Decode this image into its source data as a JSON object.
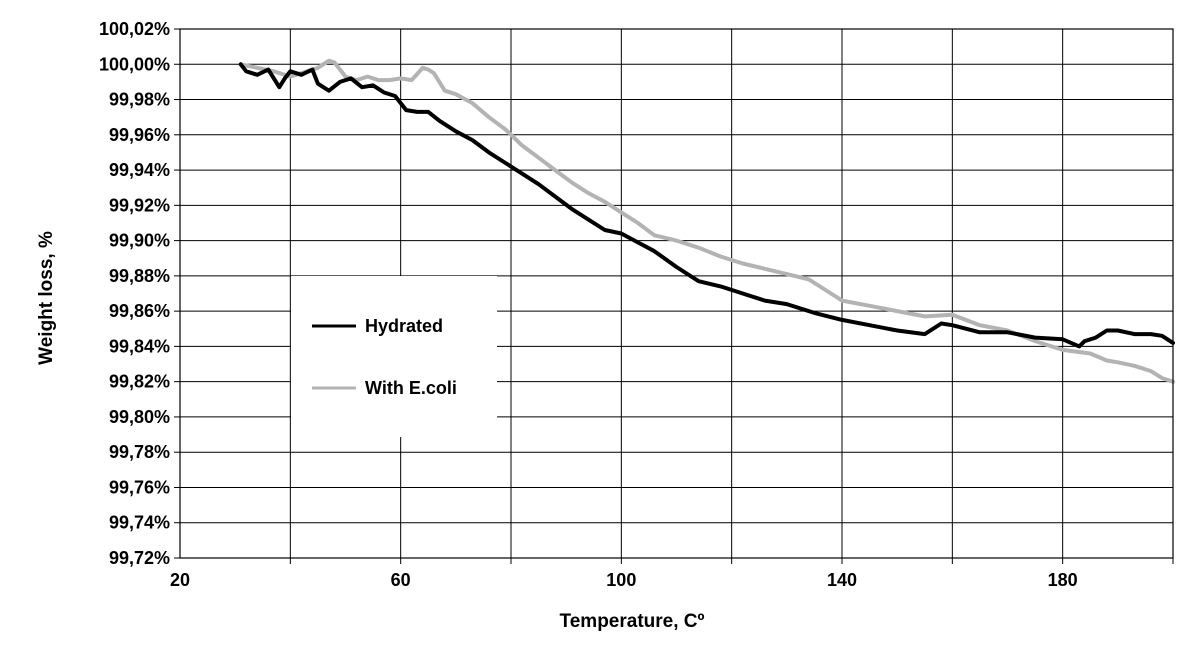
{
  "chart_data": {
    "type": "line",
    "xlabel": "Temperature, Cº",
    "ylabel": "Weight loss, %",
    "xlim": [
      20,
      200
    ],
    "ylim": [
      99.72,
      100.02
    ],
    "x_ticks": [
      20,
      60,
      100,
      140,
      180
    ],
    "x_tick_labels": [
      "20",
      "60",
      "100",
      "140",
      "180"
    ],
    "y_ticks": [
      99.72,
      99.74,
      99.76,
      99.78,
      99.8,
      99.82,
      99.84,
      99.86,
      99.88,
      99.9,
      99.92,
      99.94,
      99.96,
      99.98,
      100.0,
      100.02
    ],
    "y_tick_labels": [
      "99,72%",
      "99,74%",
      "99,76%",
      "99,78%",
      "99,80%",
      "99,82%",
      "99,84%",
      "99,86%",
      "99,88%",
      "99,90%",
      "99,92%",
      "99,94%",
      "99,96%",
      "99,98%",
      "100,00%",
      "100,02%"
    ],
    "grid": true,
    "legend_position": "middle-left",
    "series": [
      {
        "name": "Hydrated",
        "color": "#000000",
        "x": [
          31,
          32,
          34,
          36,
          38,
          39,
          40,
          42,
          44,
          45,
          47,
          49,
          51,
          53,
          55,
          57,
          59,
          61,
          63,
          65,
          67,
          70,
          73,
          76,
          79,
          82,
          85,
          88,
          91,
          94,
          97,
          100,
          103,
          106,
          110,
          114,
          118,
          122,
          126,
          130,
          135,
          140,
          145,
          150,
          155,
          158,
          160,
          165,
          170,
          175,
          180,
          183,
          184,
          186,
          188,
          190,
          193,
          196,
          198,
          200
        ],
        "y": [
          100.0,
          99.996,
          99.994,
          99.997,
          99.987,
          99.992,
          99.996,
          99.994,
          99.997,
          99.989,
          99.985,
          99.99,
          99.992,
          99.987,
          99.988,
          99.984,
          99.982,
          99.974,
          99.973,
          99.973,
          99.968,
          99.962,
          99.957,
          99.95,
          99.944,
          99.938,
          99.932,
          99.925,
          99.918,
          99.912,
          99.906,
          99.904,
          99.899,
          99.894,
          99.885,
          99.877,
          99.874,
          99.87,
          99.866,
          99.864,
          99.859,
          99.855,
          99.852,
          99.849,
          99.847,
          99.853,
          99.852,
          99.848,
          99.848,
          99.845,
          99.844,
          99.84,
          99.843,
          99.845,
          99.849,
          99.849,
          99.847,
          99.847,
          99.846,
          99.842
        ]
      },
      {
        "name": "With E.coli",
        "color": "#b3b3b3",
        "x": [
          31,
          34,
          37,
          40,
          43,
          45,
          47,
          48,
          50,
          52,
          54,
          56,
          58,
          60,
          62,
          64,
          65,
          66,
          68,
          70,
          73,
          76,
          79,
          82,
          85,
          88,
          91,
          94,
          97,
          100,
          103,
          106,
          110,
          114,
          118,
          122,
          126,
          130,
          134,
          137,
          140,
          145,
          150,
          155,
          160,
          165,
          170,
          175,
          180,
          185,
          188,
          190,
          193,
          196,
          198,
          200
        ],
        "y": [
          100.0,
          99.998,
          99.996,
          99.993,
          99.996,
          99.998,
          100.002,
          100.001,
          99.993,
          99.991,
          99.993,
          99.991,
          99.991,
          99.992,
          99.991,
          99.998,
          99.997,
          99.995,
          99.985,
          99.983,
          99.978,
          99.97,
          99.963,
          99.954,
          99.947,
          99.94,
          99.933,
          99.927,
          99.922,
          99.916,
          99.91,
          99.903,
          99.9,
          99.896,
          99.891,
          99.887,
          99.884,
          99.881,
          99.878,
          99.872,
          99.866,
          99.863,
          99.86,
          99.857,
          99.858,
          99.852,
          99.849,
          99.843,
          99.838,
          99.836,
          99.832,
          99.831,
          99.829,
          99.826,
          99.822,
          99.82
        ]
      }
    ]
  }
}
